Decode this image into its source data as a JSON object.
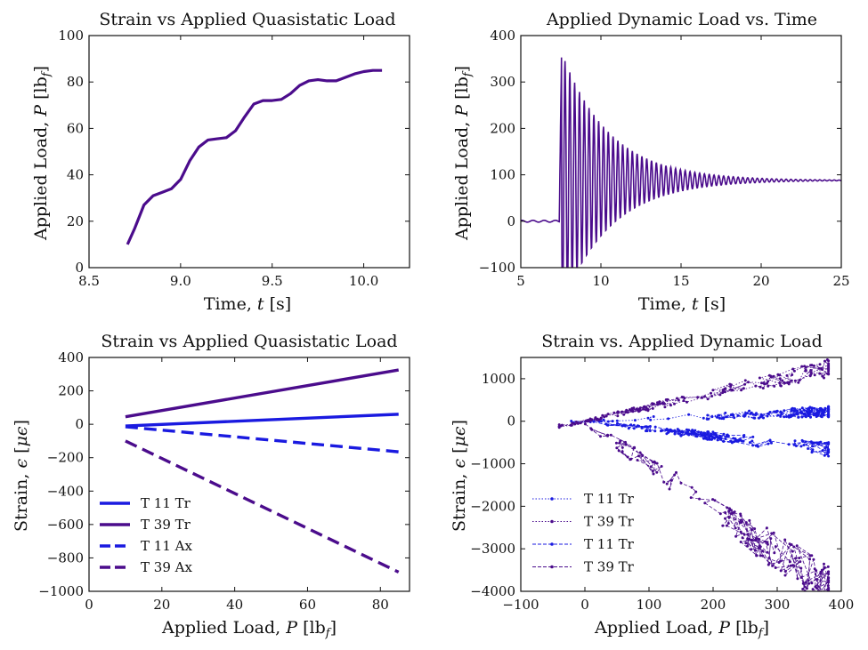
{
  "colors": {
    "purple": "#4b0c8c",
    "blue": "#1a1ae0",
    "axis": "#111111"
  },
  "chart_data": [
    {
      "type": "line",
      "title": "Strain vs Applied Quasistatic Load",
      "xlabel": "Time, t [s]",
      "ylabel": "Applied Load, P [lbf]",
      "xlim": [
        8.5,
        10.25
      ],
      "ylim": [
        0,
        100
      ],
      "xticks": [
        "8.5",
        "9.0",
        "9.5",
        "10.0"
      ],
      "xtick_values": [
        8.5,
        9.0,
        9.5,
        10.0
      ],
      "yticks": [
        "0",
        "20",
        "40",
        "60",
        "80",
        "100"
      ],
      "ytick_values": [
        0,
        20,
        40,
        60,
        80,
        100
      ],
      "grid": false,
      "series": [
        {
          "color": "#4b0c8c",
          "x": [
            8.71,
            8.75,
            8.8,
            8.85,
            8.9,
            8.95,
            9.0,
            9.05,
            9.1,
            9.15,
            9.2,
            9.25,
            9.3,
            9.35,
            9.4,
            9.45,
            9.5,
            9.55,
            9.6,
            9.65,
            9.7,
            9.75,
            9.8,
            9.85,
            9.9,
            9.95,
            10.0,
            10.05,
            10.1
          ],
          "y": [
            10,
            17,
            27,
            31,
            32.5,
            34,
            38,
            46,
            52,
            55,
            55.5,
            56,
            59,
            65,
            70.5,
            72,
            72,
            72.5,
            75,
            78.5,
            80.5,
            81,
            80.5,
            80.5,
            82,
            83.5,
            84.5,
            85,
            85
          ]
        }
      ]
    },
    {
      "type": "line",
      "title": "Applied Dynamic Load vs. Time",
      "xlabel": "Time, t [s]",
      "ylabel": "Applied Load, P [lbf]",
      "xlim": [
        5,
        25
      ],
      "ylim": [
        -100,
        400
      ],
      "xticks": [
        "5",
        "10",
        "15",
        "20",
        "25"
      ],
      "xtick_values": [
        5,
        10,
        15,
        20,
        25
      ],
      "yticks": [
        "−100",
        "0",
        "100",
        "200",
        "300",
        "400"
      ],
      "ytick_values": [
        -100,
        0,
        100,
        200,
        300,
        400
      ],
      "grid": false,
      "signal": {
        "t_start": 5,
        "t_impact": 7.4,
        "t_end": 25,
        "pre_level": 0,
        "steady_level": 88,
        "peak": 378,
        "trough": -40,
        "period_s": 0.3,
        "decay_s": 3.0
      },
      "series": [
        {
          "color": "#4b0c8c"
        }
      ]
    },
    {
      "type": "line",
      "title": "Strain vs Applied Quasistatic Load",
      "xlabel": "Applied Load, P [lbf]",
      "ylabel": "Strain, ϵ [μϵ]",
      "xlim": [
        0,
        88
      ],
      "ylim": [
        -1000,
        400
      ],
      "xticks": [
        "0",
        "20",
        "40",
        "60",
        "80"
      ],
      "xtick_values": [
        0,
        20,
        40,
        60,
        80
      ],
      "yticks": [
        "−1000",
        "−800",
        "−600",
        "−400",
        "−200",
        "0",
        "200",
        "400"
      ],
      "ytick_values": [
        -1000,
        -800,
        -600,
        -400,
        -200,
        0,
        200,
        400
      ],
      "grid": false,
      "legend_position": "lower-left",
      "series": [
        {
          "name": "T 11 Tr",
          "color": "#1a1ae0",
          "dash": "solid",
          "x": [
            10,
            85
          ],
          "y": [
            -10,
            60
          ]
        },
        {
          "name": "T 39 Tr",
          "color": "#4b0c8c",
          "dash": "solid",
          "x": [
            10,
            85
          ],
          "y": [
            45,
            325
          ]
        },
        {
          "name": "T 11 Ax",
          "color": "#1a1ae0",
          "dash": "dashed",
          "x": [
            10,
            85
          ],
          "y": [
            -15,
            -165
          ]
        },
        {
          "name": "T 39 Ax",
          "color": "#4b0c8c",
          "dash": "dashed",
          "x": [
            10,
            85
          ],
          "y": [
            -100,
            -885
          ]
        }
      ]
    },
    {
      "type": "scatter",
      "title": "Strain vs. Applied Dynamic Load",
      "xlabel": "Applied Load, P [lbf]",
      "ylabel": "Strain, ϵ [μϵ]",
      "xlim": [
        -100,
        400
      ],
      "ylim": [
        -4000,
        1500
      ],
      "xticks": [
        "−100",
        "0",
        "100",
        "200",
        "300",
        "400"
      ],
      "xtick_values": [
        -100,
        0,
        100,
        200,
        300,
        400
      ],
      "yticks": [
        "−4000",
        "−3000",
        "−2000",
        "−1000",
        "0",
        "1000"
      ],
      "ytick_values": [
        -4000,
        -3000,
        -2000,
        -1000,
        0,
        1000
      ],
      "grid": false,
      "legend_position": "lower-left",
      "series": [
        {
          "name": "T 11 Tr",
          "color": "#1a1ae0",
          "dash": "dotted",
          "slope": 0.6,
          "noise": 70
        },
        {
          "name": "T 39 Tr",
          "color": "#4b0c8c",
          "dash": "dotted",
          "slope": 3.3,
          "noise": 120
        },
        {
          "name": "T 11 Tr",
          "color": "#1a1ae0",
          "dash": "dashed",
          "slope": -1.75,
          "noise": 90
        },
        {
          "name": "T 39 Tr",
          "color": "#4b0c8c",
          "dash": "dashed",
          "slope": -10.3,
          "noise": 300
        }
      ]
    }
  ]
}
